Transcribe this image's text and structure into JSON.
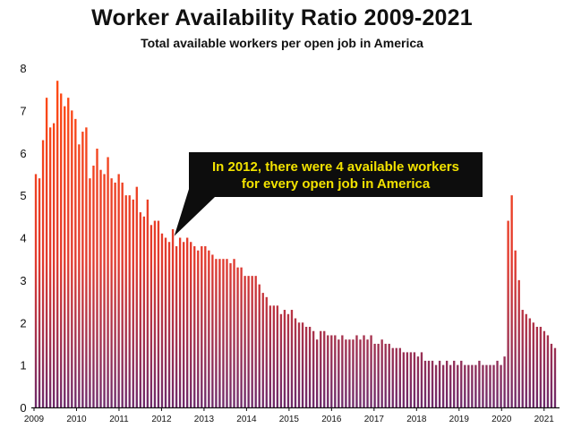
{
  "chart_data": {
    "type": "bar",
    "title": "Worker Availability Ratio 2009-2021",
    "subtitle": "Total available workers per open job in America",
    "xlabel": "",
    "ylabel": "",
    "ylim": [
      0,
      8
    ],
    "yticks": [
      "0",
      "1",
      "2",
      "3",
      "4",
      "5",
      "6",
      "7",
      "8"
    ],
    "x_start_year": 2009,
    "x_end_year": 2021.3,
    "xticks": [
      "2009",
      "2010",
      "2011",
      "2012",
      "2013",
      "2014",
      "2015",
      "2016",
      "2017",
      "2018",
      "2019",
      "2020",
      "2021"
    ],
    "colors": {
      "top": "#ff4a12",
      "bottom": "#6e2a6a",
      "axis": "#111111",
      "callout_bg": "#0d0d0d",
      "callout_text": "#f2e200"
    },
    "annotation": {
      "line1": "In 2012, there were 4 available workers",
      "line2": "for every open job in America",
      "target_year": 2012.3,
      "target_value": 4.0
    },
    "values": [
      5.5,
      5.4,
      6.3,
      7.3,
      6.6,
      6.7,
      7.7,
      7.4,
      7.1,
      7.3,
      7.0,
      6.8,
      6.2,
      6.5,
      6.6,
      5.4,
      5.7,
      6.1,
      5.6,
      5.5,
      5.9,
      5.4,
      5.3,
      5.5,
      5.3,
      5.0,
      5.0,
      4.9,
      5.2,
      4.6,
      4.5,
      4.9,
      4.3,
      4.4,
      4.4,
      4.1,
      4.0,
      3.9,
      4.2,
      3.8,
      4.0,
      3.9,
      4.0,
      3.9,
      3.8,
      3.7,
      3.8,
      3.8,
      3.7,
      3.6,
      3.5,
      3.5,
      3.5,
      3.5,
      3.4,
      3.5,
      3.3,
      3.3,
      3.1,
      3.1,
      3.1,
      3.1,
      2.9,
      2.7,
      2.6,
      2.4,
      2.4,
      2.4,
      2.2,
      2.3,
      2.2,
      2.3,
      2.1,
      2.0,
      2.0,
      1.9,
      1.9,
      1.8,
      1.6,
      1.8,
      1.8,
      1.7,
      1.7,
      1.7,
      1.6,
      1.7,
      1.6,
      1.6,
      1.6,
      1.7,
      1.6,
      1.7,
      1.6,
      1.7,
      1.5,
      1.5,
      1.6,
      1.5,
      1.5,
      1.4,
      1.4,
      1.4,
      1.3,
      1.3,
      1.3,
      1.3,
      1.2,
      1.3,
      1.1,
      1.1,
      1.1,
      1.0,
      1.1,
      1.0,
      1.1,
      1.0,
      1.1,
      1.0,
      1.1,
      1.0,
      1.0,
      1.0,
      1.0,
      1.1,
      1.0,
      1.0,
      1.0,
      1.0,
      1.1,
      1.0,
      1.2,
      4.4,
      5.0,
      3.7,
      3.0,
      2.3,
      2.2,
      2.1,
      2.0,
      1.9,
      1.9,
      1.8,
      1.7,
      1.5,
      1.4
    ]
  }
}
